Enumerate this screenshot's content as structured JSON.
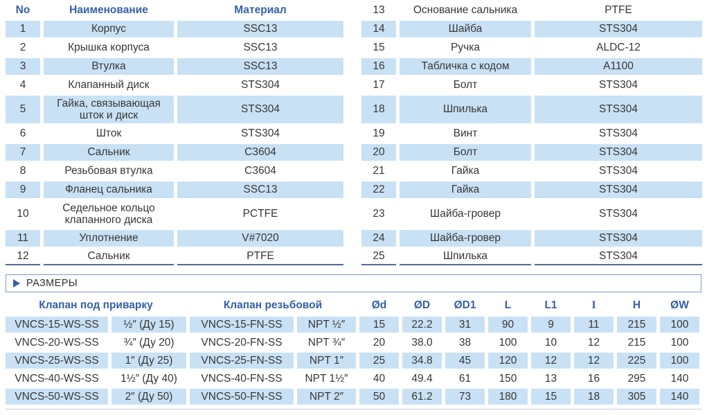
{
  "parts_table": {
    "headers": {
      "no": "No",
      "name": "Наименование",
      "material": "Материал"
    },
    "left_rows": [
      {
        "no": "1",
        "name": "Корпус",
        "material": "SSC13"
      },
      {
        "no": "2",
        "name": "Крышка корпуса",
        "material": "SSC13"
      },
      {
        "no": "3",
        "name": "Втулка",
        "material": "SSC13"
      },
      {
        "no": "4",
        "name": "Клапанный диск",
        "material": "STS304"
      },
      {
        "no": "5",
        "name": "Гайка, связывающая шток и диск",
        "material": "STS304"
      },
      {
        "no": "6",
        "name": "Шток",
        "material": "STS304"
      },
      {
        "no": "7",
        "name": "Сальник",
        "material": "C3604"
      },
      {
        "no": "8",
        "name": "Резьбовая втулка",
        "material": "C3604"
      },
      {
        "no": "9",
        "name": "Фланец сальника",
        "material": "SSC13"
      },
      {
        "no": "10",
        "name": "Седельное кольцо клапанного диска",
        "material": "PCTFE"
      },
      {
        "no": "11",
        "name": "Уплотнение",
        "material": "V#7020"
      },
      {
        "no": "12",
        "name": "Сальник",
        "material": "PTFE"
      }
    ],
    "right_rows": [
      {
        "no": "13",
        "name": "Основание сальника",
        "material": "PTFE"
      },
      {
        "no": "14",
        "name": "Шайба",
        "material": "STS304"
      },
      {
        "no": "15",
        "name": "Ручка",
        "material": "ALDC-12"
      },
      {
        "no": "16",
        "name": "Табличка с кодом",
        "material": "A1100"
      },
      {
        "no": "17",
        "name": "Болт",
        "material": "STS304"
      },
      {
        "no": "18",
        "name": "Шпилька",
        "material": "STS304"
      },
      {
        "no": "19",
        "name": "Винт",
        "material": "STS304"
      },
      {
        "no": "20",
        "name": "Болт",
        "material": "STS304"
      },
      {
        "no": "21",
        "name": "Гайка",
        "material": "STS304"
      },
      {
        "no": "22",
        "name": "Гайка",
        "material": "STS304"
      },
      {
        "no": "23",
        "name": "Шайба-гровер",
        "material": "STS304"
      },
      {
        "no": "24",
        "name": "Шайба-гровер",
        "material": "STS304"
      },
      {
        "no": "25",
        "name": "Шпилька",
        "material": "STS304"
      }
    ]
  },
  "dimensions_section": {
    "title": "РАЗМЕРЫ",
    "group_headers": {
      "weld": "Клапан под приварку",
      "thread": "Клапан резьбовой"
    },
    "column_headers": [
      "Ød",
      "ØD",
      "ØD1",
      "L",
      "L1",
      "I",
      "H",
      "ØW"
    ],
    "rows": [
      {
        "weld_model": "VNCS-15-WS-SS",
        "weld_size": "½″ (Ду 15)",
        "thread_model": "VNCS-15-FN-SS",
        "thread_size": "NPT ½″",
        "d": "15",
        "D": "22.2",
        "D1": "31",
        "L": "90",
        "L1": "9",
        "I": "11",
        "H": "215",
        "W": "100"
      },
      {
        "weld_model": "VNCS-20-WS-SS",
        "weld_size": "¾″ (Ду 20)",
        "thread_model": "VNCS-20-FN-SS",
        "thread_size": "NPT ¾″",
        "d": "20",
        "D": "38.0",
        "D1": "38",
        "L": "100",
        "L1": "10",
        "I": "12",
        "H": "215",
        "W": "100"
      },
      {
        "weld_model": "VNCS-25-WS-SS",
        "weld_size": "1″ (Ду 25)",
        "thread_model": "VNCS-25-FN-SS",
        "thread_size": "NPT 1″",
        "d": "25",
        "D": "34.8",
        "D1": "45",
        "L": "120",
        "L1": "12",
        "I": "12",
        "H": "225",
        "W": "100"
      },
      {
        "weld_model": "VNCS-40-WS-SS",
        "weld_size": "1½″ (Ду 40)",
        "thread_model": "VNCS-40-FN-SS",
        "thread_size": "NPT 1½″",
        "d": "40",
        "D": "49.4",
        "D1": "61",
        "L": "150",
        "L1": "13",
        "I": "16",
        "H": "295",
        "W": "140"
      },
      {
        "weld_model": "VNCS-50-WS-SS",
        "weld_size": "2″ (Ду 50)",
        "thread_model": "VNCS-50-FN-SS",
        "thread_size": "NPT 2″",
        "d": "50",
        "D": "61.2",
        "D1": "73",
        "L": "180",
        "L1": "15",
        "I": "18",
        "H": "305",
        "W": "140"
      }
    ]
  },
  "colors": {
    "accent_blue": "#3560a8",
    "row_shade": "#c9e1f4",
    "table_end_line": "#4f6a94",
    "section_box_border": "#8399bb"
  }
}
